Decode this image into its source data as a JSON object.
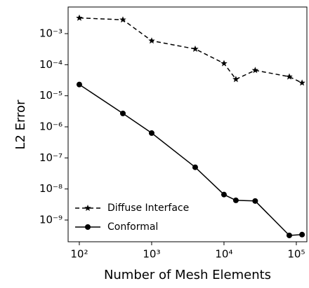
{
  "chart_data": {
    "type": "line",
    "x_label": "Number of Mesh Elements",
    "y_label": "L2 Error",
    "xscale": "log",
    "yscale": "log",
    "xlim": [
      70,
      140000
    ],
    "ylim": [
      2e-10,
      0.0072
    ],
    "xticks": [
      {
        "value": 100,
        "label": "10²"
      },
      {
        "value": 1000,
        "label": "10³"
      },
      {
        "value": 10000,
        "label": "10⁴"
      },
      {
        "value": 100000,
        "label": "10⁵"
      }
    ],
    "yticks": [
      {
        "value": 1e-09,
        "label": "10⁻⁹"
      },
      {
        "value": 1e-08,
        "label": "10⁻⁸"
      },
      {
        "value": 1e-07,
        "label": "10⁻⁷"
      },
      {
        "value": 1e-06,
        "label": "10⁻⁶"
      },
      {
        "value": 1e-05,
        "label": "10⁻⁵"
      },
      {
        "value": 0.0001,
        "label": "10⁻⁴"
      },
      {
        "value": 0.001,
        "label": "10⁻³"
      }
    ],
    "legend": "lower left",
    "series": [
      {
        "name": "Diffuse Interface",
        "color": "#000000",
        "linestyle": "dashed",
        "marker": "star",
        "x": [
          100,
          400,
          1000,
          4000,
          10000,
          14600,
          27000,
          80000,
          120000
        ],
        "values": [
          0.0032,
          0.0028,
          0.00059,
          0.00032,
          0.00011,
          3.4e-05,
          6.6e-05,
          4.1e-05,
          2.6e-05
        ]
      },
      {
        "name": "Conformal",
        "color": "#000000",
        "linestyle": "solid",
        "marker": "circle",
        "x": [
          100,
          400,
          1000,
          4000,
          10000,
          14600,
          27000,
          80000,
          120000
        ],
        "values": [
          2.3e-05,
          2.7e-06,
          6.3e-07,
          5e-08,
          6.6e-09,
          4.3e-09,
          4.1e-09,
          3.2e-10,
          3.4e-10
        ]
      }
    ]
  }
}
